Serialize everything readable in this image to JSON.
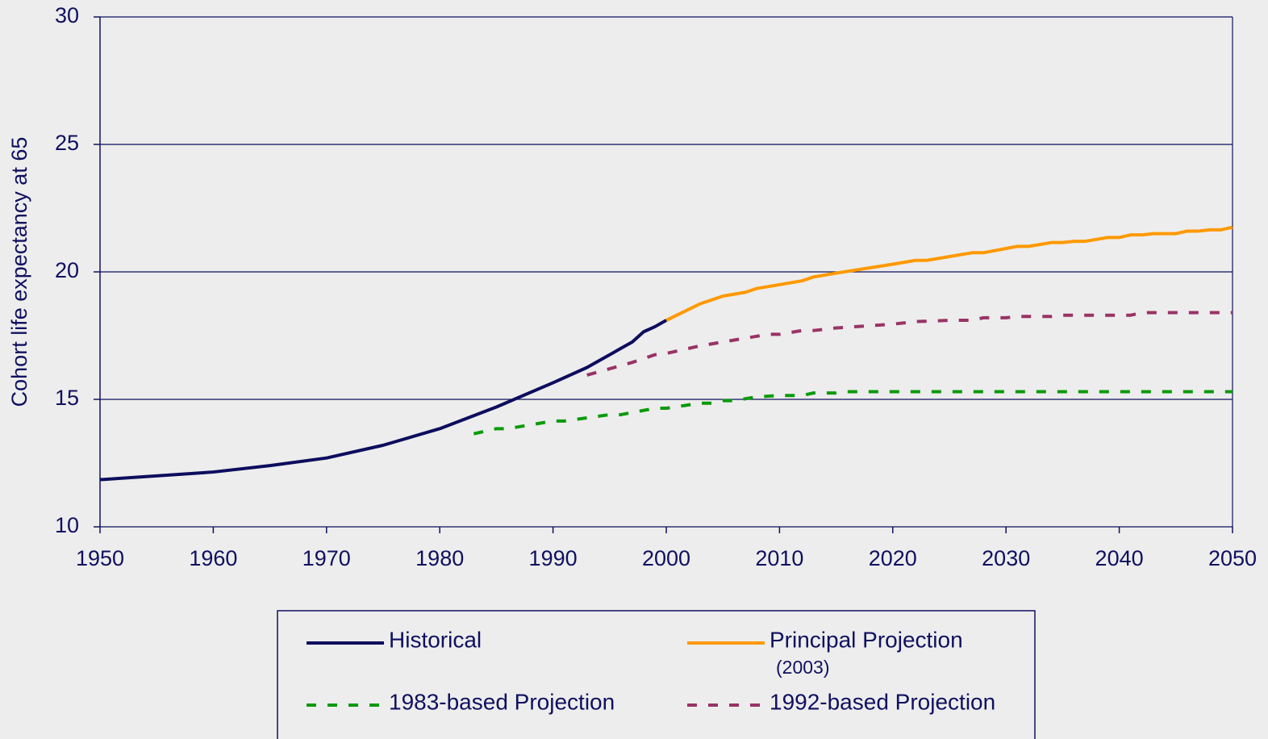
{
  "chart_data": {
    "type": "line",
    "y_label": "Cohort life expectancy at 65",
    "xlim": [
      1950,
      2050
    ],
    "xticks": [
      1950,
      1960,
      1970,
      1980,
      1990,
      2000,
      2010,
      2020,
      2030,
      2040,
      2050
    ],
    "ylim": [
      10,
      30
    ],
    "yticks": [
      10,
      15,
      20,
      25,
      30
    ],
    "grid": true,
    "series": [
      {
        "name": "Historical",
        "color": "#0d0d5e",
        "dashed": false,
        "x": [
          1950,
          1960,
          1965,
          1970,
          1975,
          1980,
          1985,
          1990,
          1993,
          1996,
          1997,
          1998,
          1999,
          2000
        ],
        "values": [
          11.85,
          12.15,
          12.4,
          12.7,
          13.2,
          13.85,
          14.7,
          15.65,
          16.25,
          17.0,
          17.25,
          17.65,
          17.85,
          18.1
        ]
      },
      {
        "name": "Principal Projection",
        "name_note": "(2003)",
        "color": "#ff9900",
        "dashed": false,
        "x": [
          2000,
          2003,
          2005,
          2007,
          2008,
          2012,
          2013,
          2015,
          2020,
          2022,
          2023,
          2027,
          2028,
          2031,
          2032,
          2034,
          2035,
          2036,
          2037,
          2039,
          2040,
          2041,
          2042,
          2043,
          2045,
          2046,
          2047,
          2048,
          2049,
          2050
        ],
        "values": [
          18.1,
          18.75,
          19.05,
          19.2,
          19.35,
          19.65,
          19.8,
          19.95,
          20.3,
          20.45,
          20.45,
          20.75,
          20.75,
          21.0,
          21.0,
          21.15,
          21.15,
          21.2,
          21.2,
          21.35,
          21.35,
          21.45,
          21.45,
          21.5,
          21.5,
          21.6,
          21.6,
          21.65,
          21.65,
          21.75
        ]
      },
      {
        "name": "1983-based Projection",
        "color": "#0a9a0a",
        "dashed": true,
        "x": [
          1983,
          1985,
          1986,
          1990,
          1991,
          1995,
          1996,
          1999,
          2000,
          2003,
          2004,
          2005,
          2006,
          2008,
          2010,
          2012,
          2013,
          2015,
          2016,
          2050
        ],
        "values": [
          13.65,
          13.85,
          13.85,
          14.15,
          14.15,
          14.4,
          14.4,
          14.65,
          14.65,
          14.85,
          14.85,
          14.95,
          14.95,
          15.1,
          15.15,
          15.15,
          15.25,
          15.25,
          15.3,
          15.3
        ]
      },
      {
        "name": "1992-based Projection",
        "color": "#993366",
        "dashed": true,
        "x": [
          1993,
          1997,
          1999,
          2000,
          2003,
          2007,
          2009,
          2010,
          2012,
          2013,
          2015,
          2020,
          2022,
          2025,
          2027,
          2028,
          2030,
          2031,
          2034,
          2035,
          2041,
          2042,
          2050
        ],
        "values": [
          15.95,
          16.45,
          16.75,
          16.8,
          17.1,
          17.4,
          17.55,
          17.55,
          17.7,
          17.7,
          17.8,
          17.95,
          18.05,
          18.1,
          18.1,
          18.2,
          18.2,
          18.25,
          18.25,
          18.3,
          18.3,
          18.4,
          18.4
        ]
      }
    ]
  }
}
